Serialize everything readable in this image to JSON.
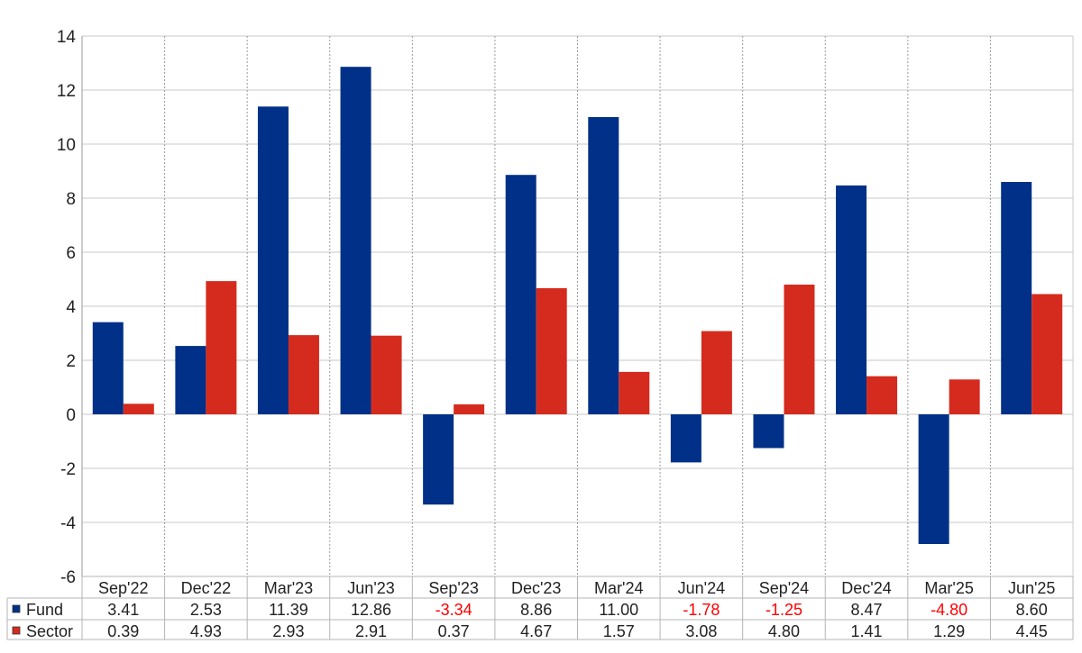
{
  "chart_data": {
    "type": "bar",
    "categories": [
      "Sep'22",
      "Dec'22",
      "Mar'23",
      "Jun'23",
      "Sep'23",
      "Dec'23",
      "Mar'24",
      "Jun'24",
      "Sep'24",
      "Dec'24",
      "Mar'25",
      "Jun'25"
    ],
    "series": [
      {
        "name": "Fund",
        "color": "#003087",
        "values": [
          3.41,
          2.53,
          11.39,
          12.86,
          -3.34,
          8.86,
          11.0,
          -1.78,
          -1.25,
          8.47,
          -4.8,
          8.6
        ],
        "labels": [
          "3.41",
          "2.53",
          "11.39",
          "12.86",
          "-3.34",
          "8.86",
          "11.00",
          "-1.78",
          "-1.25",
          "8.47",
          "-4.80",
          "8.60"
        ]
      },
      {
        "name": "Sector",
        "color": "#d52b1e",
        "values": [
          0.39,
          4.93,
          2.93,
          2.91,
          0.37,
          4.67,
          1.57,
          3.08,
          4.8,
          1.41,
          1.29,
          4.45
        ],
        "labels": [
          "0.39",
          "4.93",
          "2.93",
          "2.91",
          "0.37",
          "4.67",
          "1.57",
          "3.08",
          "4.80",
          "1.41",
          "1.29",
          "4.45"
        ]
      }
    ],
    "yticks": [
      "14",
      "12",
      "10",
      "8",
      "6",
      "4",
      "2",
      "0",
      "-2",
      "-4",
      "-6"
    ],
    "ylim": [
      -6,
      14
    ],
    "negative_label_color": "#ff0000",
    "grid": true,
    "legend": "data-table-below"
  }
}
